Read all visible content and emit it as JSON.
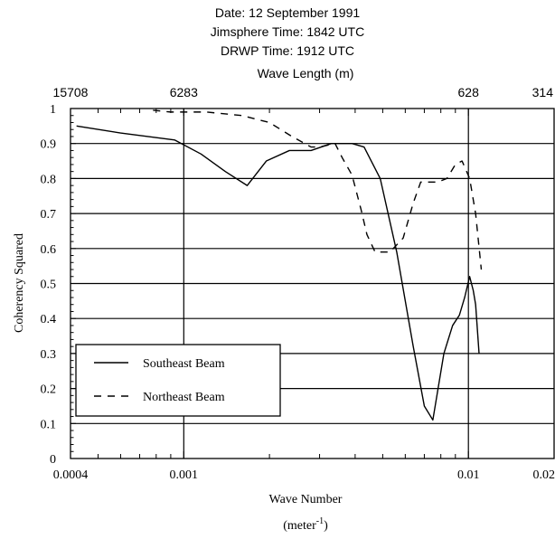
{
  "header": {
    "line1": "Date: 12 September 1991",
    "line2": "Jimsphere Time: 1842 UTC",
    "line3": "DRWP Time: 1912 UTC"
  },
  "chart_data": {
    "type": "line",
    "title_lines": [
      "Date: 12 September 1991",
      "Jimsphere Time: 1842 UTC",
      "DRWP Time: 1912 UTC"
    ],
    "xlabel": "Wave Number",
    "xlabel_unit": "(meter",
    "xlabel_unit_sup": "-1",
    "x2label": "Wave Length (m)",
    "ylabel": "Coherency Squared",
    "x_scale": "log",
    "xlim": [
      0.0004,
      0.02
    ],
    "ylim": [
      0,
      1
    ],
    "x_ticks": [
      {
        "value": 0.0004,
        "label": "0.0004"
      },
      {
        "value": 0.001,
        "label": "0.001"
      },
      {
        "value": 0.01,
        "label": "0.01"
      },
      {
        "value": 0.02,
        "label": "0.02"
      }
    ],
    "x2_ticks": [
      {
        "value": 0.0004,
        "label": "15708"
      },
      {
        "value": 0.001,
        "label": "6283"
      },
      {
        "value": 0.01,
        "label": "628"
      },
      {
        "value": 0.02,
        "label": "314"
      }
    ],
    "y_ticks": [
      {
        "value": 0,
        "label": "0"
      },
      {
        "value": 0.1,
        "label": "0.1"
      },
      {
        "value": 0.2,
        "label": "0.2"
      },
      {
        "value": 0.3,
        "label": "0.3"
      },
      {
        "value": 0.4,
        "label": "0.4"
      },
      {
        "value": 0.5,
        "label": "0.5"
      },
      {
        "value": 0.6,
        "label": "0.6"
      },
      {
        "value": 0.7,
        "label": "0.7"
      },
      {
        "value": 0.8,
        "label": "0.8"
      },
      {
        "value": 0.9,
        "label": "0.9"
      },
      {
        "value": 1,
        "label": "1"
      }
    ],
    "grid": {
      "horizontal": true,
      "vertical_at": [
        0.001,
        0.01
      ]
    },
    "legend_position": "lower-left",
    "series": [
      {
        "name": "Southeast Beam",
        "style": "solid",
        "color": "#000000",
        "points": [
          [
            0.00042,
            0.95
          ],
          [
            0.0006,
            0.93
          ],
          [
            0.00093,
            0.91
          ],
          [
            0.00115,
            0.87
          ],
          [
            0.0014,
            0.82
          ],
          [
            0.00167,
            0.78
          ],
          [
            0.00195,
            0.85
          ],
          [
            0.00235,
            0.88
          ],
          [
            0.0028,
            0.88
          ],
          [
            0.0033,
            0.9
          ],
          [
            0.0039,
            0.9
          ],
          [
            0.0043,
            0.89
          ],
          [
            0.0049,
            0.8
          ],
          [
            0.0056,
            0.59
          ],
          [
            0.0064,
            0.32
          ],
          [
            0.007,
            0.15
          ],
          [
            0.0075,
            0.11
          ],
          [
            0.0082,
            0.3
          ],
          [
            0.0088,
            0.38
          ],
          [
            0.0093,
            0.41
          ],
          [
            0.0097,
            0.46
          ],
          [
            0.0101,
            0.52
          ],
          [
            0.0104,
            0.48
          ],
          [
            0.0106,
            0.44
          ],
          [
            0.0109,
            0.3
          ]
        ]
      },
      {
        "name": "Northeast Beam",
        "style": "dashed",
        "color": "#000000",
        "points": [
          [
            0.00078,
            0.995
          ],
          [
            0.0009,
            0.99
          ],
          [
            0.0012,
            0.99
          ],
          [
            0.0016,
            0.98
          ],
          [
            0.002,
            0.96
          ],
          [
            0.0024,
            0.92
          ],
          [
            0.0028,
            0.89
          ],
          [
            0.003,
            0.89
          ],
          [
            0.0034,
            0.9
          ],
          [
            0.0036,
            0.86
          ],
          [
            0.0039,
            0.81
          ],
          [
            0.0042,
            0.71
          ],
          [
            0.0044,
            0.64
          ],
          [
            0.0047,
            0.59
          ],
          [
            0.0053,
            0.59
          ],
          [
            0.0059,
            0.63
          ],
          [
            0.0064,
            0.73
          ],
          [
            0.0068,
            0.79
          ],
          [
            0.0073,
            0.79
          ],
          [
            0.0078,
            0.79
          ],
          [
            0.0084,
            0.8
          ],
          [
            0.009,
            0.84
          ],
          [
            0.0095,
            0.85
          ],
          [
            0.0101,
            0.8
          ],
          [
            0.0106,
            0.7
          ],
          [
            0.0111,
            0.54
          ]
        ]
      }
    ]
  }
}
